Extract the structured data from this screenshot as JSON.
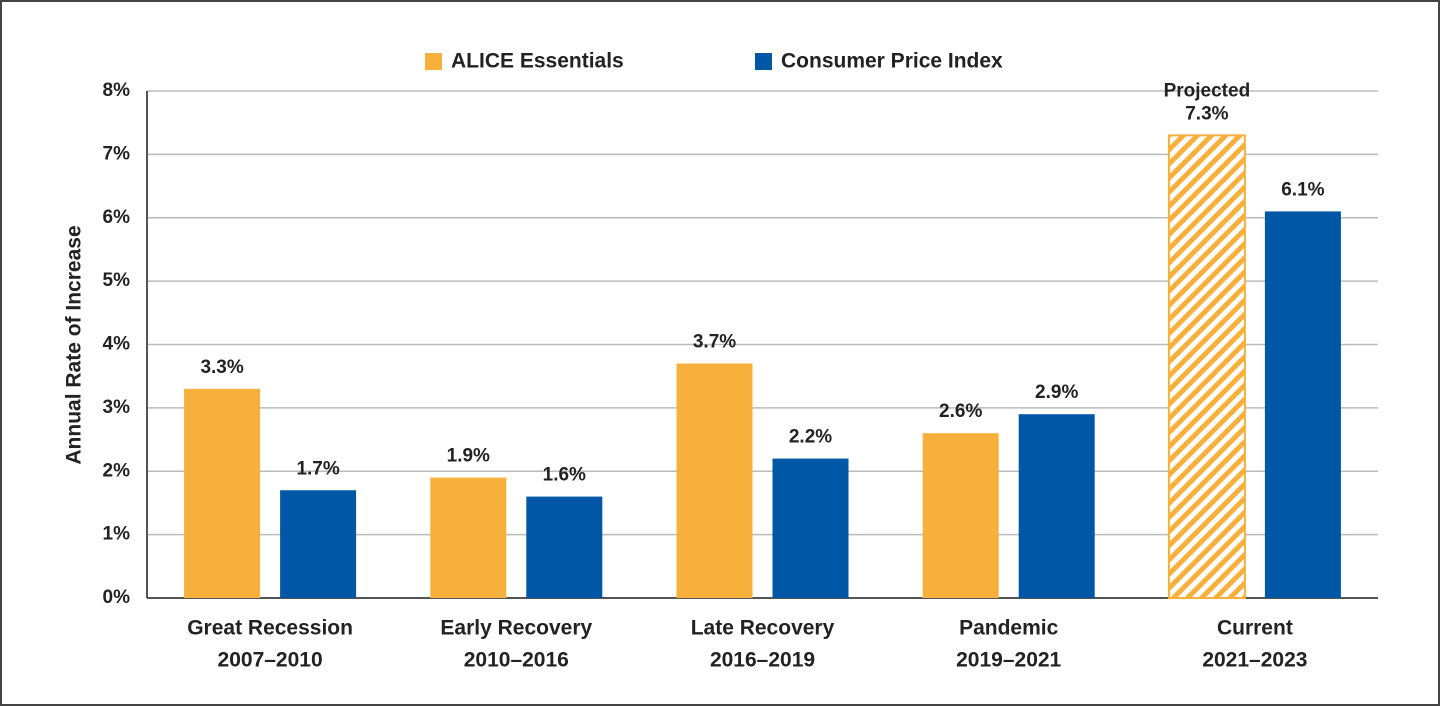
{
  "chart_data": {
    "type": "bar",
    "y_axis_label": "Annual Rate of Increase",
    "categories": [
      [
        "Great Recession",
        "2007–2010"
      ],
      [
        "Early Recovery",
        "2010–2016"
      ],
      [
        "Late Recovery",
        "2016–2019"
      ],
      [
        "Pandemic",
        "2019–2021"
      ],
      [
        "Current",
        "2021–2023"
      ]
    ],
    "series": [
      {
        "name": "ALICE Essentials",
        "color": "#f8b03c",
        "values": [
          3.3,
          1.9,
          3.7,
          2.6,
          7.3
        ],
        "value_labels": [
          "3.3%",
          "1.9%",
          "3.7%",
          "2.6%",
          "7.3%"
        ]
      },
      {
        "name": "Consumer Price Index",
        "color": "#0057a5",
        "values": [
          1.7,
          1.6,
          2.2,
          2.9,
          6.1
        ],
        "value_labels": [
          "1.7%",
          "1.6%",
          "2.2%",
          "2.9%",
          "6.1%"
        ]
      }
    ],
    "annotation": {
      "text": "Projected",
      "series": 0,
      "index": 4,
      "hatched": true
    },
    "ylim": [
      0,
      8
    ],
    "yticks": [
      {
        "value": 0,
        "label": "0%"
      },
      {
        "value": 1,
        "label": "1%"
      },
      {
        "value": 2,
        "label": "2%"
      },
      {
        "value": 3,
        "label": "3%"
      },
      {
        "value": 4,
        "label": "4%"
      },
      {
        "value": 5,
        "label": "5%"
      },
      {
        "value": 6,
        "label": "6%"
      },
      {
        "value": 7,
        "label": "7%"
      },
      {
        "value": 8,
        "label": "8%"
      }
    ],
    "grid": true,
    "legend": "top"
  }
}
